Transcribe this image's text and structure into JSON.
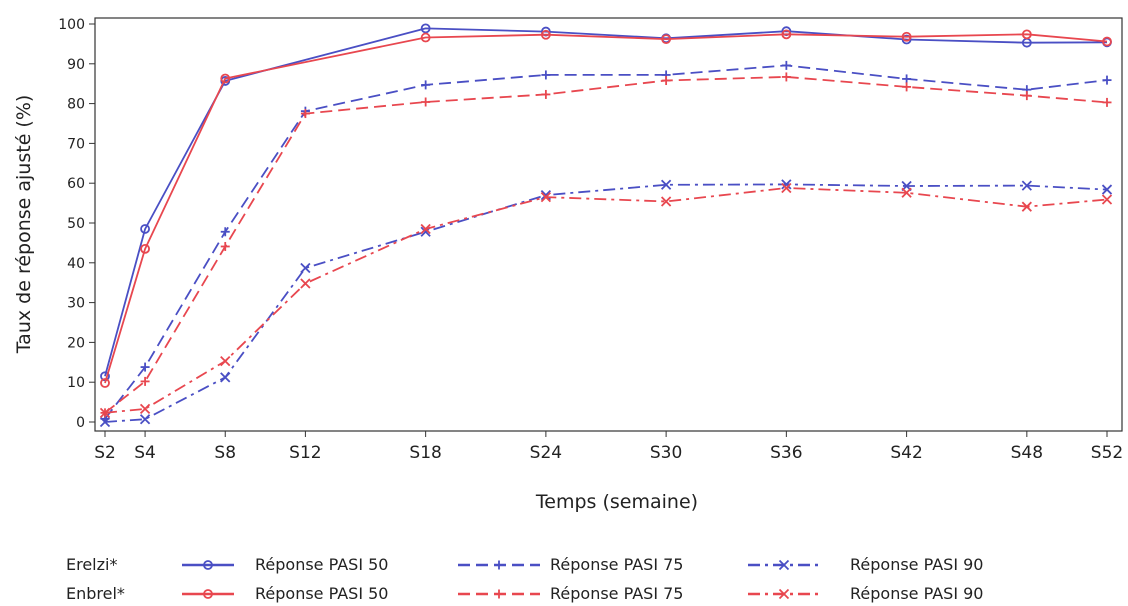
{
  "chart_data": {
    "type": "line",
    "xlabel": "Temps (semaine)",
    "ylabel": "Taux de réponse ajusté (%)",
    "ylim": [
      0,
      100
    ],
    "yticks": [
      0,
      10,
      20,
      30,
      40,
      50,
      60,
      70,
      80,
      90,
      100
    ],
    "categories": [
      "S2",
      "S4",
      "S8",
      "S12",
      "S18",
      "S24",
      "S30",
      "S36",
      "S42",
      "S48",
      "S52"
    ],
    "x": [
      2,
      4,
      8,
      12,
      18,
      24,
      30,
      36,
      42,
      48,
      52
    ],
    "grid": false,
    "legend_position": "bottom",
    "series": [
      {
        "name": "Réponse PASI 50",
        "group": "Erelzi*",
        "color": "#4a4fc4",
        "dash": "solid",
        "marker": "circle",
        "values": [
          11.5,
          48.5,
          85.7,
          null,
          98.9,
          98.1,
          96.4,
          98.2,
          96.1,
          95.3,
          95.4
        ]
      },
      {
        "name": "Réponse PASI 50",
        "group": "Enbrel*",
        "color": "#e8474f",
        "dash": "solid",
        "marker": "circle",
        "values": [
          9.8,
          43.5,
          86.3,
          null,
          96.6,
          97.3,
          96.2,
          97.4,
          96.8,
          97.4,
          95.6
        ]
      },
      {
        "name": "Réponse PASI 75",
        "group": "Erelzi*",
        "color": "#4a4fc4",
        "dash": "dash",
        "marker": "plus",
        "values": [
          0.8,
          13.8,
          47.8,
          78.1,
          84.7,
          87.2,
          87.2,
          89.6,
          86.2,
          83.5,
          85.9
        ]
      },
      {
        "name": "Réponse PASI 75",
        "group": "Enbrel*",
        "color": "#e8474f",
        "dash": "dash",
        "marker": "plus",
        "values": [
          2.3,
          10.2,
          44.1,
          77.5,
          80.4,
          82.3,
          85.8,
          86.7,
          84.2,
          82.0,
          80.3
        ]
      },
      {
        "name": "Réponse PASI 90",
        "group": "Erelzi*",
        "color": "#4a4fc4",
        "dash": "dashdot",
        "marker": "x",
        "values": [
          0.0,
          0.7,
          11.2,
          38.7,
          47.8,
          57.0,
          59.6,
          59.7,
          59.3,
          59.4,
          58.4
        ]
      },
      {
        "name": "Réponse PASI 90",
        "group": "Enbrel*",
        "color": "#e8474f",
        "dash": "dashdot",
        "marker": "x",
        "values": [
          2.3,
          3.3,
          15.3,
          34.8,
          48.5,
          56.5,
          55.4,
          58.8,
          57.6,
          54.1,
          55.9
        ]
      }
    ],
    "legend": {
      "rows": [
        {
          "label": "Erelzi*",
          "items": [
            "Réponse PASI 50",
            "Réponse PASI 75",
            "Réponse PASI 90"
          ]
        },
        {
          "label": "Enbrel*",
          "items": [
            "Réponse PASI 50",
            "Réponse PASI 75",
            "Réponse PASI 90"
          ]
        }
      ]
    }
  }
}
